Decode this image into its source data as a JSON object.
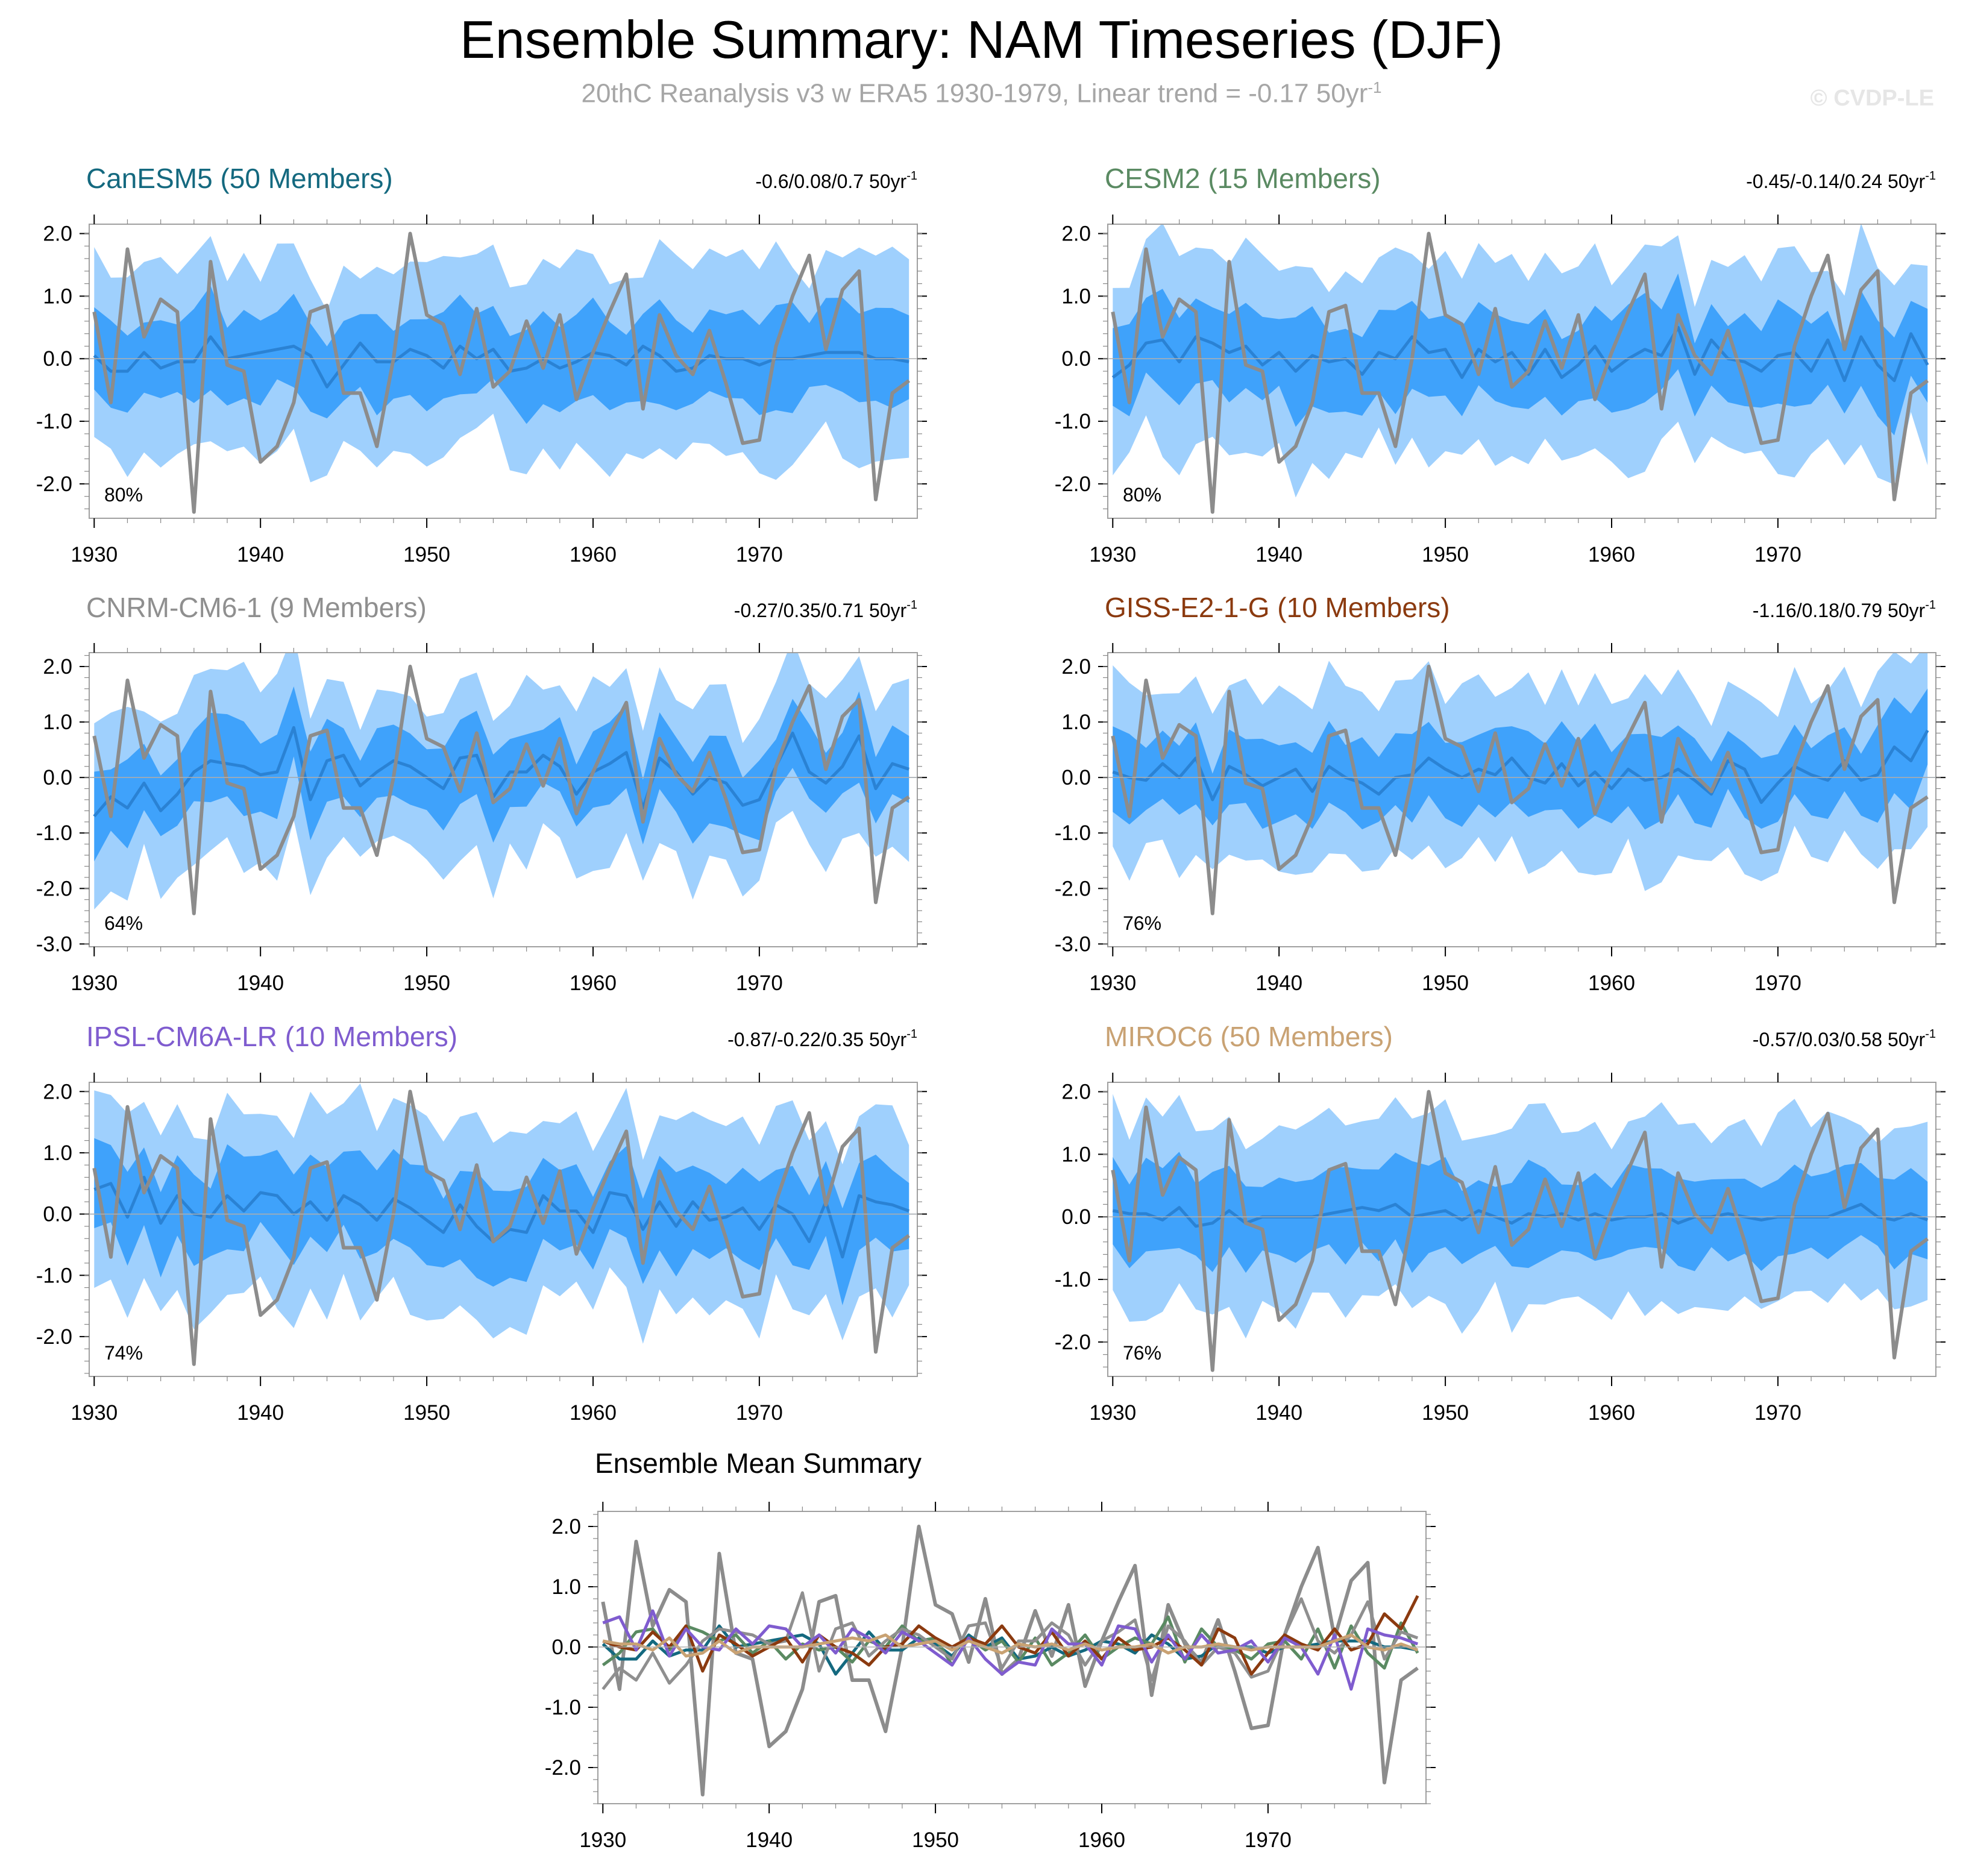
{
  "title": "Ensemble Summary: NAM Timeseries (DJF)",
  "subtitle": "20thC Reanalysis v3 w ERA5 1930-1979, Linear trend = -0.17 50yr",
  "subtitle_sup": "-1",
  "watermark": "© CVDP-LE",
  "colors": {
    "band_outer": "#9fd0fd",
    "band_inner": "#3fa2fb",
    "mean_line": "#2a82d4",
    "obs_line": "#8c8c8c"
  },
  "chart_data": {
    "type": "line",
    "x": [
      1930,
      1931,
      1932,
      1933,
      1934,
      1935,
      1936,
      1937,
      1938,
      1939,
      1940,
      1941,
      1942,
      1943,
      1944,
      1945,
      1946,
      1947,
      1948,
      1949,
      1950,
      1951,
      1952,
      1953,
      1954,
      1955,
      1956,
      1957,
      1958,
      1959,
      1960,
      1961,
      1962,
      1963,
      1964,
      1965,
      1966,
      1967,
      1968,
      1969,
      1970,
      1971,
      1972,
      1973,
      1974,
      1975,
      1976,
      1977,
      1978,
      1979
    ],
    "xlim": [
      1929.7,
      1979.5
    ],
    "xticks": [
      1930,
      1940,
      1950,
      1960,
      1970
    ],
    "observed": {
      "name": "20thC Reanalysis v3 w ERA5",
      "color": "#8c8c8c",
      "values": [
        0.75,
        -0.7,
        1.75,
        0.35,
        0.95,
        0.75,
        -2.45,
        1.55,
        -0.1,
        -0.2,
        -1.65,
        -1.4,
        -0.7,
        0.75,
        0.85,
        -0.55,
        -0.55,
        -1.4,
        0.0,
        2.0,
        0.7,
        0.55,
        -0.25,
        0.8,
        -0.45,
        -0.2,
        0.6,
        -0.15,
        0.7,
        -0.65,
        0.1,
        0.75,
        1.35,
        -0.8,
        0.7,
        0.05,
        -0.25,
        0.45,
        -0.4,
        -1.35,
        -1.3,
        0.2,
        1.0,
        1.65,
        0.15,
        1.1,
        1.4,
        -2.25,
        -0.55,
        -0.35
      ]
    },
    "panels": [
      {
        "name": "CanESM5 (50 Members)",
        "color": "#14697f",
        "stats": "-0.6/0.08/0.7 50yr",
        "pct": "80%",
        "ylim": [
          -2.55,
          2.15
        ],
        "yticks": [
          2.0,
          1.0,
          0.0,
          -1.0,
          -2.0
        ],
        "yticklabels": [
          "2.0",
          "1.0",
          "0.0",
          "-1.0",
          "-2.0"
        ],
        "mean": [
          0.05,
          -0.2,
          -0.2,
          0.1,
          -0.15,
          -0.05,
          -0.05,
          0.35,
          0.0,
          0.05,
          0.1,
          0.15,
          0.2,
          0.05,
          -0.45,
          -0.1,
          0.25,
          -0.05,
          -0.05,
          0.15,
          0.05,
          -0.15,
          0.2,
          0.0,
          0.15,
          -0.2,
          -0.15,
          0.0,
          -0.15,
          -0.05,
          0.1,
          0.05,
          -0.1,
          0.2,
          0.05,
          -0.2,
          -0.15,
          0.05,
          0.0,
          0.0,
          -0.1,
          0.0,
          0.0,
          0.05,
          0.1,
          0.1,
          0.1,
          0.0,
          0.0,
          -0.05
        ]
      },
      {
        "name": "CESM2 (15 Members)",
        "color": "#5a8a62",
        "stats": "-0.45/-0.14/0.24 50yr",
        "pct": "80%",
        "ylim": [
          -2.55,
          2.15
        ],
        "yticks": [
          2.0,
          1.0,
          0.0,
          -1.0,
          -2.0
        ],
        "yticklabels": [
          "2.0",
          "1.0",
          "0.0",
          "-1.0",
          "-2.0"
        ],
        "mean": [
          -0.3,
          -0.1,
          0.25,
          0.3,
          -0.05,
          0.35,
          0.25,
          0.1,
          0.2,
          -0.1,
          0.1,
          -0.2,
          0.05,
          -0.05,
          0.0,
          -0.25,
          0.1,
          0.0,
          0.35,
          0.1,
          0.15,
          -0.3,
          0.15,
          -0.05,
          0.1,
          -0.25,
          0.15,
          -0.3,
          -0.1,
          0.2,
          -0.2,
          0.0,
          0.15,
          0.05,
          0.5,
          -0.25,
          0.3,
          0.0,
          -0.05,
          -0.2,
          0.05,
          0.1,
          -0.2,
          0.3,
          -0.35,
          0.35,
          -0.1,
          -0.35,
          0.4,
          -0.1
        ]
      },
      {
        "name": "CNRM-CM6-1 (9 Members)",
        "color": "#8f8f8f",
        "stats": "-0.27/0.35/0.71 50yr",
        "pct": "64%",
        "ylim": [
          -3.05,
          2.25
        ],
        "yticks": [
          2.0,
          1.0,
          0.0,
          -1.0,
          -2.0,
          -3.0
        ],
        "yticklabels": [
          "2.0",
          "1.0",
          "0.0",
          "-1.0",
          "-2.0",
          "-3.0"
        ],
        "mean": [
          -0.7,
          -0.35,
          -0.55,
          -0.1,
          -0.6,
          -0.3,
          0.1,
          0.3,
          0.25,
          0.2,
          0.05,
          0.1,
          0.9,
          -0.4,
          0.3,
          0.4,
          -0.15,
          0.1,
          0.3,
          0.2,
          0.0,
          -0.2,
          0.35,
          0.4,
          -0.35,
          0.1,
          0.1,
          0.4,
          0.2,
          -0.3,
          0.1,
          0.25,
          0.45,
          -0.55,
          0.35,
          0.1,
          -0.3,
          0.0,
          -0.1,
          -0.5,
          -0.4,
          0.2,
          0.8,
          0.1,
          -0.1,
          0.2,
          0.75,
          -0.2,
          0.25,
          0.15
        ]
      },
      {
        "name": "GISS-E2-1-G (10 Members)",
        "color": "#8b3a0f",
        "stats": "-1.16/0.18/0.79 50yr",
        "pct": "76%",
        "ylim": [
          -3.05,
          2.25
        ],
        "yticks": [
          2.0,
          1.0,
          0.0,
          -1.0,
          -2.0,
          -3.0
        ],
        "yticklabels": [
          "2.0",
          "1.0",
          "0.0",
          "-1.0",
          "-2.0",
          "-3.0"
        ],
        "mean": [
          0.1,
          0.0,
          -0.05,
          0.25,
          0.0,
          0.35,
          -0.4,
          0.2,
          0.05,
          -0.15,
          0.0,
          0.15,
          -0.25,
          0.2,
          0.0,
          -0.1,
          -0.3,
          0.0,
          0.05,
          0.35,
          0.15,
          0.0,
          0.15,
          0.05,
          0.35,
          0.0,
          -0.1,
          0.25,
          -0.15,
          0.1,
          -0.2,
          0.15,
          -0.05,
          0.0,
          0.15,
          -0.05,
          -0.3,
          0.3,
          0.15,
          -0.45,
          -0.1,
          0.2,
          0.05,
          -0.05,
          0.3,
          -0.05,
          0.05,
          0.55,
          0.3,
          0.85
        ]
      },
      {
        "name": "IPSL-CM6A-LR (10 Members)",
        "color": "#7f5ccf",
        "stats": "-0.87/-0.22/0.35 50yr",
        "pct": "74%",
        "ylim": [
          -2.65,
          2.15
        ],
        "yticks": [
          2.0,
          1.0,
          0.0,
          -1.0,
          -2.0
        ],
        "yticklabels": [
          "2.0",
          "1.0",
          "0.0",
          "-1.0",
          "-2.0"
        ],
        "mean": [
          0.4,
          0.5,
          -0.05,
          0.6,
          -0.15,
          0.3,
          0.0,
          -0.05,
          0.3,
          0.05,
          0.35,
          0.3,
          0.0,
          0.2,
          -0.1,
          0.3,
          0.15,
          -0.1,
          0.25,
          0.1,
          -0.1,
          -0.3,
          0.15,
          -0.2,
          -0.45,
          -0.25,
          -0.3,
          0.3,
          0.05,
          0.05,
          -0.3,
          0.35,
          0.3,
          -0.25,
          0.2,
          -0.2,
          0.2,
          -0.1,
          -0.05,
          0.1,
          -0.25,
          0.15,
          0.0,
          -0.45,
          0.2,
          -0.7,
          0.3,
          0.2,
          0.15,
          0.05
        ]
      },
      {
        "name": "MIROC6 (50 Members)",
        "color": "#c9a273",
        "stats": "-0.57/0.03/0.58 50yr",
        "pct": "76%",
        "ylim": [
          -2.55,
          2.15
        ],
        "yticks": [
          2.0,
          1.0,
          0.0,
          -1.0,
          -2.0
        ],
        "yticklabels": [
          "2.0",
          "1.0",
          "0.0",
          "-1.0",
          "-2.0"
        ],
        "mean": [
          0.1,
          0.05,
          0.05,
          -0.05,
          0.15,
          -0.15,
          -0.1,
          0.1,
          -0.1,
          0.0,
          0.0,
          0.0,
          0.0,
          0.05,
          0.1,
          0.15,
          0.1,
          0.2,
          0.0,
          0.05,
          0.1,
          -0.05,
          0.1,
          0.0,
          -0.1,
          0.05,
          0.0,
          0.05,
          -0.05,
          0.05,
          -0.05,
          0.0,
          0.0,
          0.05,
          -0.1,
          0.0,
          0.0,
          0.05,
          0.0,
          -0.05,
          0.0,
          0.0,
          0.0,
          0.0,
          0.1,
          0.2,
          0.0,
          -0.05,
          0.05,
          -0.05
        ]
      }
    ],
    "summary": {
      "title": "Ensemble Mean Summary",
      "ylim": [
        -2.6,
        2.25
      ],
      "yticks": [
        2.0,
        1.0,
        0.0,
        -1.0,
        -2.0
      ],
      "yticklabels": [
        "2.0",
        "1.0",
        "0.0",
        "-1.0",
        "-2.0"
      ]
    }
  }
}
